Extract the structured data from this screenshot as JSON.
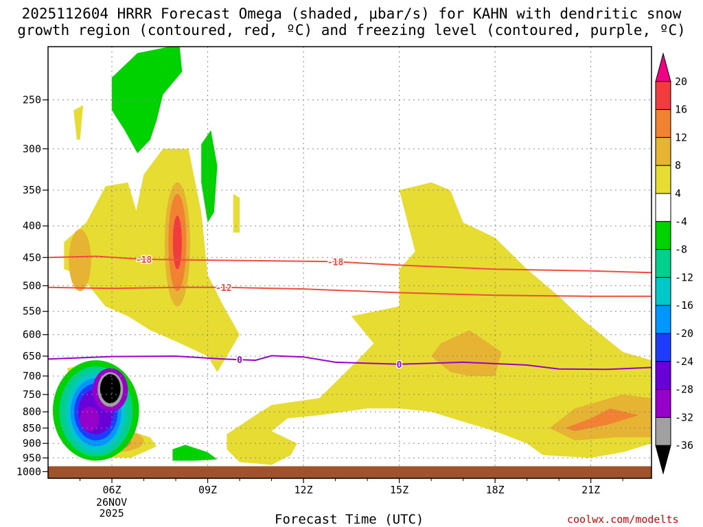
{
  "title_line1": "2025112604 HRRR Forecast Omega (shaded, μbar/s) for KAHN with dendritic snow",
  "title_line2": "growth region (contoured, red, ºC) and freezing level (contoured, purple, ºC)",
  "xlabel": "Forecast Time (UTC)",
  "date_label_line1": "26NOV",
  "date_label_line2": "2025",
  "credit": "coolwx.com/modelts",
  "chart_data": {
    "type": "heatmap",
    "title": "2025112604 HRRR Forecast Omega (shaded, μbar/s) for KAHN with dendritic snow growth region (contoured, red, ºC) and freezing level (contoured, purple, ºC)",
    "xlabel": "Forecast Time (UTC)",
    "ylabel": "",
    "x_range_hours_utc": [
      4,
      22.9
    ],
    "x_ticks": [
      {
        "hour": 6,
        "label": "06Z"
      },
      {
        "hour": 9,
        "label": "09Z"
      },
      {
        "hour": 12,
        "label": "12Z"
      },
      {
        "hour": 15,
        "label": "15Z"
      },
      {
        "hour": 18,
        "label": "18Z"
      },
      {
        "hour": 21,
        "label": "21Z"
      }
    ],
    "y_axis": "pressure (hPa, log scale, inverted)",
    "y_range": [
      205,
      1025
    ],
    "y_ticks": [
      250,
      300,
      350,
      400,
      450,
      500,
      550,
      600,
      650,
      700,
      750,
      800,
      850,
      900,
      950,
      1000
    ],
    "grid": true,
    "colorbar": {
      "levels": [
        -36,
        -32,
        -28,
        -24,
        -20,
        -16,
        -12,
        -8,
        -4,
        4,
        8,
        12,
        16,
        20
      ],
      "colors": [
        "#000000",
        "#a0a0a0",
        "#9600c8",
        "#6a00d8",
        "#1e3cff",
        "#0096ff",
        "#00c8c8",
        "#00d08c",
        "#00d200",
        "#ffffff",
        "#e6dc32",
        "#e6b432",
        "#f08232",
        "#f03c3c",
        "#f00082"
      ]
    },
    "contours": [
      {
        "label": "-18",
        "color": "#f04b3c",
        "points": [
          [
            4,
            450
          ],
          [
            5.5,
            448
          ],
          [
            7,
            453
          ],
          [
            10,
            455
          ],
          [
            13,
            457
          ],
          [
            15,
            463
          ],
          [
            18,
            470
          ],
          [
            21,
            473
          ],
          [
            22.9,
            476
          ]
        ]
      },
      {
        "label": "-12",
        "color": "#f04b3c",
        "points": [
          [
            4,
            503
          ],
          [
            6,
            505
          ],
          [
            8,
            503
          ],
          [
            9.5,
            503
          ],
          [
            12,
            506
          ],
          [
            15,
            513
          ],
          [
            18,
            518
          ],
          [
            21,
            520
          ],
          [
            22.9,
            520
          ]
        ]
      },
      {
        "label": "0",
        "color": "#9600c8",
        "points": [
          [
            4,
            657
          ],
          [
            6,
            651
          ],
          [
            8,
            650
          ],
          [
            9.5,
            657
          ],
          [
            10.5,
            660
          ],
          [
            11,
            649
          ],
          [
            12,
            652
          ],
          [
            13,
            665
          ],
          [
            15,
            670
          ],
          [
            17,
            665
          ],
          [
            19,
            672
          ],
          [
            20,
            682
          ],
          [
            21.5,
            683
          ],
          [
            22.9,
            678
          ]
        ]
      }
    ],
    "omega_features": [
      {
        "category": "4 to 8",
        "approx_location": "hour 4.5-22.9, 300-950 hPa"
      },
      {
        "category": "8 to 16",
        "approx_location": "hour 7.8-8.3, 330-520 hPa; hour 16-18, 630-700 hPa; hour 20-22, 800-870 hPa"
      },
      {
        "category": "16 to 20",
        "approx_location": "hour 7.9-8.1, 380-470 hPa; hour 5.8-6.5, 870-910 hPa"
      },
      {
        "category": "-36 to -4",
        "approx_location": "hour 4.8-6.7, 650-950 hPa; hour 6-8, 205-320 hPa; hour 8-9.5, 870-960 hPa"
      }
    ]
  }
}
